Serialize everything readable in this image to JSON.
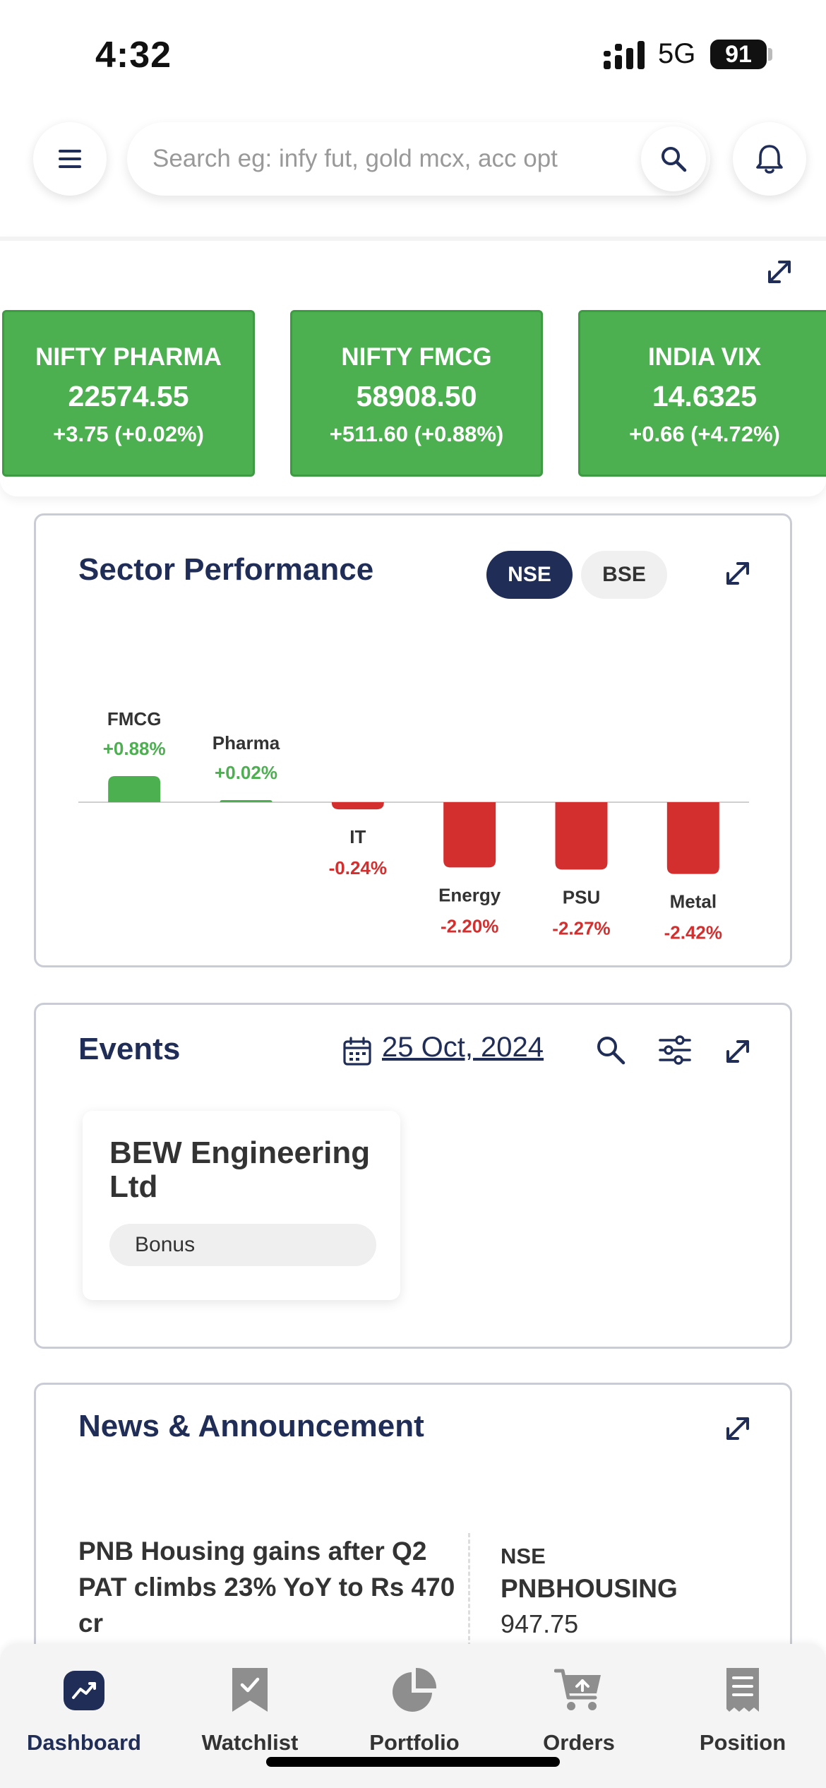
{
  "status_bar": {
    "time": "4:32",
    "network": "5G",
    "battery": "91"
  },
  "header": {
    "search_placeholder": "Search eg: infy fut, gold mcx, acc opt"
  },
  "indices": [
    {
      "name": "NIFTY PHARMA",
      "value": "22574.55",
      "change": "+3.75 (+0.02%)"
    },
    {
      "name": "NIFTY FMCG",
      "value": "58908.50",
      "change": "+511.60 (+0.88%)"
    },
    {
      "name": "INDIA VIX",
      "value": "14.6325",
      "change": "+0.66 (+4.72%)"
    }
  ],
  "colors": {
    "positive": "#4caf50",
    "negative": "#d32f2f",
    "navy": "#1f2d57"
  },
  "sector_performance": {
    "title": "Sector Performance",
    "exchanges": [
      "NSE",
      "BSE"
    ],
    "selected_exchange": "NSE"
  },
  "chart_data": {
    "type": "bar",
    "title": "Sector Performance",
    "categories": [
      "FMCG",
      "Pharma",
      "IT",
      "Energy",
      "PSU",
      "Metal"
    ],
    "values": [
      0.88,
      0.02,
      -0.24,
      -2.2,
      -2.27,
      -2.42
    ],
    "value_labels": [
      "+0.88%",
      "+0.02%",
      "-0.24%",
      "-2.20%",
      "-2.27%",
      "-2.42%"
    ],
    "ylim": [
      -2.42,
      0.88
    ],
    "grid": false,
    "legend": "none"
  },
  "events": {
    "title": "Events",
    "date": "25 Oct, 2024",
    "items": [
      {
        "company": "BEW Engineering Ltd",
        "tag": "Bonus"
      }
    ]
  },
  "news": {
    "title": "News & Announcement",
    "items": [
      {
        "headline": "PNB Housing gains after Q2 PAT climbs 23% YoY to Rs 470 cr",
        "exchange": "NSE",
        "symbol": "PNBHOUSING",
        "price": "947.75"
      }
    ]
  },
  "bottom_nav": {
    "items": [
      {
        "label": "Dashboard",
        "icon": "dashboard-icon"
      },
      {
        "label": "Watchlist",
        "icon": "bookmark-icon"
      },
      {
        "label": "Portfolio",
        "icon": "pie-chart-icon"
      },
      {
        "label": "Orders",
        "icon": "cart-icon"
      },
      {
        "label": "Position",
        "icon": "receipt-icon"
      }
    ],
    "active": "Dashboard"
  }
}
